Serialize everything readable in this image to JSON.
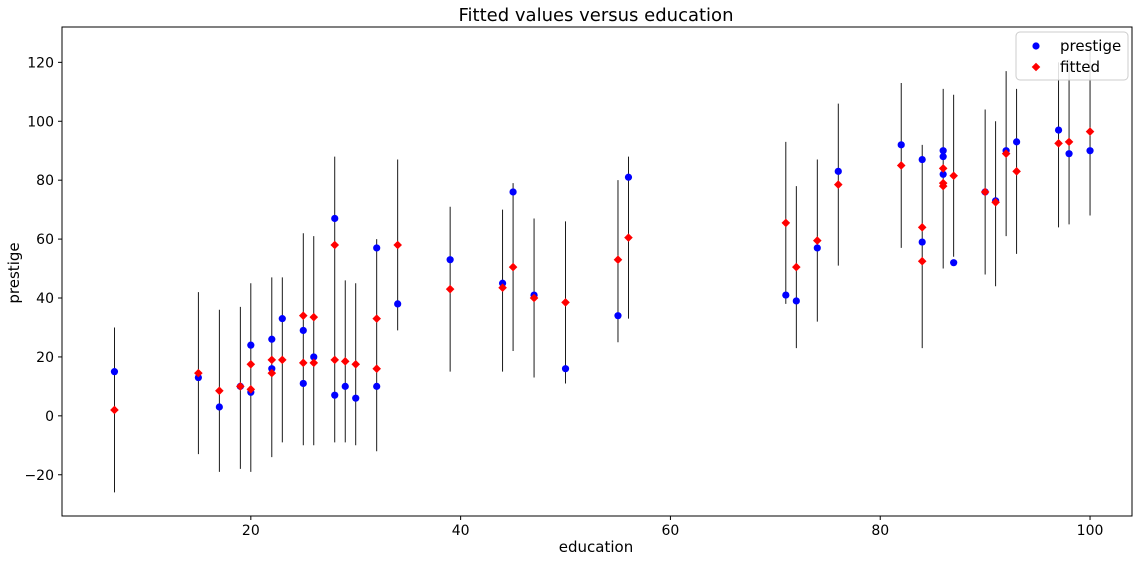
{
  "chart_data": {
    "type": "scatter",
    "title": "Fitted values versus education",
    "xlabel": "education",
    "ylabel": "prestige",
    "xlim": [
      2,
      104
    ],
    "ylim": [
      -34,
      132
    ],
    "xticks": [
      20,
      40,
      60,
      80,
      100
    ],
    "yticks": [
      -20,
      0,
      20,
      40,
      60,
      80,
      100,
      120
    ],
    "grid": false,
    "legend_position": "top-right",
    "colors": {
      "prestige": "#0000ff",
      "fitted": "#ff0000",
      "error_bar": "#000000"
    },
    "series": [
      {
        "name": "prestige",
        "marker": "circle",
        "points": [
          [
            7,
            15
          ],
          [
            15,
            13
          ],
          [
            17,
            3
          ],
          [
            19,
            10
          ],
          [
            20,
            24
          ],
          [
            20,
            8
          ],
          [
            22,
            26
          ],
          [
            22,
            16
          ],
          [
            23,
            33
          ],
          [
            25,
            29
          ],
          [
            25,
            11
          ],
          [
            26,
            20
          ],
          [
            28,
            67
          ],
          [
            28,
            7
          ],
          [
            29,
            10
          ],
          [
            30,
            6
          ],
          [
            32,
            57
          ],
          [
            32,
            10
          ],
          [
            34,
            38
          ],
          [
            39,
            53
          ],
          [
            44,
            45
          ],
          [
            45,
            76
          ],
          [
            47,
            41
          ],
          [
            50,
            16
          ],
          [
            55,
            34
          ],
          [
            56,
            81
          ],
          [
            71,
            41
          ],
          [
            72,
            39
          ],
          [
            74,
            57
          ],
          [
            76,
            83
          ],
          [
            82,
            92
          ],
          [
            84,
            87
          ],
          [
            84,
            59
          ],
          [
            86,
            90
          ],
          [
            86,
            88
          ],
          [
            86,
            82
          ],
          [
            87,
            52
          ],
          [
            90,
            76
          ],
          [
            91,
            73
          ],
          [
            92,
            90
          ],
          [
            93,
            93
          ],
          [
            97,
            97
          ],
          [
            98,
            89
          ],
          [
            100,
            90
          ]
        ]
      },
      {
        "name": "fitted",
        "marker": "diamond",
        "points": [
          [
            7,
            2
          ],
          [
            15,
            14.5
          ],
          [
            17,
            8.5
          ],
          [
            19,
            10
          ],
          [
            20,
            17.5
          ],
          [
            20,
            9
          ],
          [
            22,
            19
          ],
          [
            22,
            14.5
          ],
          [
            23,
            19
          ],
          [
            25,
            34
          ],
          [
            25,
            18
          ],
          [
            26,
            33.5
          ],
          [
            26,
            18
          ],
          [
            28,
            58
          ],
          [
            28,
            19
          ],
          [
            29,
            18.5
          ],
          [
            30,
            17.5
          ],
          [
            32,
            33
          ],
          [
            32,
            16
          ],
          [
            34,
            58
          ],
          [
            39,
            43
          ],
          [
            44,
            43.5
          ],
          [
            45,
            50.5
          ],
          [
            47,
            40
          ],
          [
            50,
            38.5
          ],
          [
            55,
            53
          ],
          [
            56,
            60.5
          ],
          [
            71,
            65.5
          ],
          [
            72,
            50.5
          ],
          [
            74,
            59.5
          ],
          [
            76,
            78.5
          ],
          [
            82,
            85
          ],
          [
            84,
            64
          ],
          [
            84,
            52.5
          ],
          [
            86,
            84
          ],
          [
            86,
            79
          ],
          [
            86,
            78
          ],
          [
            87,
            81.5
          ],
          [
            90,
            76
          ],
          [
            91,
            72.5
          ],
          [
            92,
            89
          ],
          [
            93,
            83
          ],
          [
            97,
            92.5
          ],
          [
            98,
            93
          ],
          [
            100,
            96.5
          ]
        ]
      }
    ],
    "error_bars": [
      [
        7,
        -26,
        30
      ],
      [
        15,
        -13,
        42
      ],
      [
        17,
        -19,
        36
      ],
      [
        19,
        -18,
        37
      ],
      [
        20,
        -19,
        45
      ],
      [
        22,
        -14,
        47
      ],
      [
        23,
        -9,
        47
      ],
      [
        25,
        -10,
        62
      ],
      [
        26,
        -10,
        61
      ],
      [
        28,
        -9,
        88
      ],
      [
        29,
        -9,
        46
      ],
      [
        30,
        -10,
        45
      ],
      [
        32,
        -12,
        60
      ],
      [
        34,
        29,
        87
      ],
      [
        39,
        15,
        71
      ],
      [
        44,
        15,
        70
      ],
      [
        45,
        22,
        79
      ],
      [
        47,
        13,
        67
      ],
      [
        50,
        11,
        66
      ],
      [
        55,
        25,
        80
      ],
      [
        56,
        33,
        88
      ],
      [
        71,
        38,
        93
      ],
      [
        72,
        23,
        78
      ],
      [
        74,
        32,
        87
      ],
      [
        76,
        51,
        106
      ],
      [
        82,
        57,
        113
      ],
      [
        84,
        23,
        92
      ],
      [
        86,
        50,
        111
      ],
      [
        87,
        54,
        109
      ],
      [
        90,
        48,
        104
      ],
      [
        91,
        44,
        100
      ],
      [
        92,
        61,
        117
      ],
      [
        93,
        55,
        111
      ],
      [
        97,
        64,
        120
      ],
      [
        98,
        65,
        121
      ],
      [
        100,
        68,
        124
      ]
    ]
  }
}
